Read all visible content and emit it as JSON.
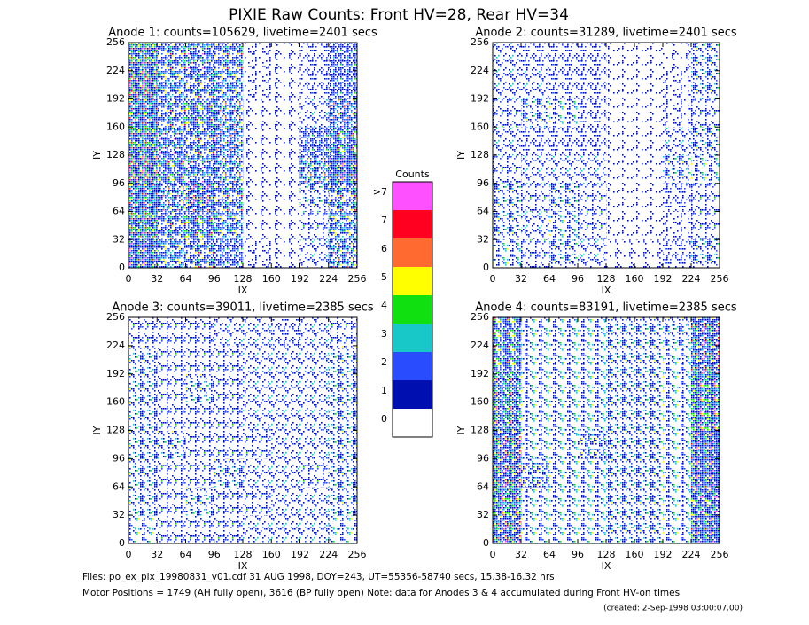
{
  "title": "PIXIE Raw Counts:  Front HV=28, Rear HV=34",
  "colorbar": {
    "title": "Counts",
    "levels": [
      {
        "label": "0",
        "color": "#ffffff"
      },
      {
        "label": "1",
        "color": "#0010b0"
      },
      {
        "label": "2",
        "color": "#2a4cff"
      },
      {
        "label": "3",
        "color": "#18c8c8"
      },
      {
        "label": "4",
        "color": "#10e010"
      },
      {
        "label": "5",
        "color": "#ffff00"
      },
      {
        "label": "6",
        "color": "#ff6a30"
      },
      {
        "label": "7",
        "color": "#ff0020"
      },
      {
        "label": ">7",
        "color": "#ff50ff"
      }
    ]
  },
  "footer": [
    "Files: po_ex_pix_19980831_v01.cdf    31 AUG 1998, DOY=243, UT=55356-58740 secs, 15.38-16.32 hrs",
    "Motor Positions = 1749 (AH fully open), 3616 (BP fully open)    Note: data for Anodes 3 & 4 accumulated during Front HV-on times",
    "(created:  2-Sep-1998 03:00:07.00)"
  ],
  "chart_data": [
    {
      "type": "heatmap",
      "title": "Anode 1: counts=105629, livetime=2401 secs",
      "x_label": "IX",
      "y_label": "IY",
      "xlim": [
        0,
        256
      ],
      "ylim": [
        0,
        256
      ],
      "xticks": [
        0,
        32,
        64,
        96,
        128,
        160,
        192,
        224,
        256
      ],
      "yticks": [
        0,
        32,
        64,
        96,
        128,
        160,
        192,
        224,
        256
      ],
      "z": [
        [
          2.2,
          1.5,
          1.6,
          1.2,
          0.4,
          0.3,
          0.6,
          1.4
        ],
        [
          2.5,
          1.6,
          1.8,
          1.5,
          0.3,
          0.3,
          0.7,
          1.5
        ],
        [
          2.4,
          1.4,
          2.0,
          1.6,
          0.3,
          0.3,
          0.8,
          1.6
        ],
        [
          2.6,
          1.8,
          1.7,
          1.4,
          0.3,
          0.3,
          1.4,
          2.2
        ],
        [
          2.5,
          1.7,
          1.6,
          1.3,
          0.3,
          0.3,
          1.2,
          1.8
        ],
        [
          2.4,
          1.6,
          1.8,
          1.4,
          0.3,
          0.3,
          0.6,
          1.3
        ],
        [
          2.6,
          1.5,
          1.6,
          1.5,
          0.4,
          0.3,
          0.5,
          1.2
        ],
        [
          2.5,
          1.6,
          1.7,
          1.6,
          0.4,
          0.3,
          0.5,
          1.2
        ]
      ]
    },
    {
      "type": "heatmap",
      "title": "Anode 2: counts=31289, livetime=2401 secs",
      "x_label": "IX",
      "y_label": "IY",
      "xlim": [
        0,
        256
      ],
      "ylim": [
        0,
        256
      ],
      "xticks": [
        0,
        32,
        64,
        96,
        128,
        160,
        192,
        224,
        256
      ],
      "yticks": [
        0,
        32,
        64,
        96,
        128,
        160,
        192,
        224,
        256
      ],
      "z": [
        [
          0.9,
          0.7,
          0.8,
          0.6,
          0.3,
          0.3,
          0.5,
          0.8
        ],
        [
          0.8,
          0.6,
          0.9,
          0.7,
          0.2,
          0.2,
          0.4,
          0.7
        ],
        [
          0.8,
          0.7,
          0.8,
          0.7,
          0.2,
          0.2,
          0.5,
          0.7
        ],
        [
          0.7,
          0.6,
          0.6,
          0.6,
          0.2,
          0.2,
          0.8,
          0.9
        ],
        [
          0.6,
          0.5,
          0.5,
          0.5,
          0.2,
          0.2,
          0.6,
          0.8
        ],
        [
          0.7,
          0.8,
          0.9,
          0.5,
          0.2,
          0.2,
          0.4,
          0.7
        ],
        [
          0.6,
          0.6,
          0.5,
          0.5,
          0.2,
          0.2,
          0.4,
          0.8
        ],
        [
          0.6,
          0.5,
          0.5,
          0.5,
          0.2,
          0.2,
          0.3,
          0.8
        ]
      ]
    },
    {
      "type": "heatmap",
      "title": "Anode 3: counts=39011, livetime=2385 secs",
      "x_label": "IX",
      "y_label": "IY",
      "xlim": [
        0,
        256
      ],
      "ylim": [
        0,
        256
      ],
      "xticks": [
        0,
        32,
        64,
        96,
        128,
        160,
        192,
        224,
        256
      ],
      "yticks": [
        0,
        32,
        64,
        96,
        128,
        160,
        192,
        224,
        256
      ],
      "z": [
        [
          0.9,
          0.7,
          0.7,
          0.7,
          0.6,
          0.6,
          0.6,
          0.9
        ],
        [
          0.8,
          0.7,
          0.8,
          0.7,
          0.7,
          0.6,
          0.6,
          0.8
        ],
        [
          0.8,
          0.7,
          0.7,
          0.8,
          0.6,
          0.6,
          0.7,
          0.8
        ],
        [
          0.8,
          0.8,
          0.7,
          0.7,
          0.7,
          0.6,
          0.6,
          0.8
        ],
        [
          0.8,
          0.7,
          0.7,
          0.7,
          0.6,
          0.6,
          0.6,
          0.8
        ],
        [
          0.8,
          0.7,
          0.8,
          0.7,
          0.6,
          0.6,
          0.6,
          0.8
        ],
        [
          0.8,
          0.7,
          0.7,
          0.7,
          0.6,
          0.6,
          0.6,
          0.8
        ],
        [
          0.7,
          0.7,
          0.7,
          0.6,
          0.6,
          0.5,
          0.6,
          0.7
        ]
      ]
    },
    {
      "type": "heatmap",
      "title": "Anode 4: counts=83191, livetime=2385 secs",
      "x_label": "IX",
      "y_label": "IY",
      "xlim": [
        0,
        256
      ],
      "ylim": [
        0,
        256
      ],
      "xticks": [
        0,
        32,
        64,
        96,
        128,
        160,
        192,
        224,
        256
      ],
      "yticks": [
        0,
        32,
        64,
        96,
        128,
        160,
        192,
        224,
        256
      ],
      "z": [
        [
          2.0,
          0.9,
          0.9,
          0.9,
          0.8,
          0.8,
          0.9,
          2.2
        ],
        [
          2.1,
          0.9,
          0.9,
          0.9,
          0.8,
          0.8,
          0.9,
          2.3
        ],
        [
          2.0,
          1.0,
          0.9,
          0.9,
          0.8,
          0.8,
          0.9,
          2.2
        ],
        [
          2.0,
          0.9,
          0.9,
          1.0,
          0.8,
          0.8,
          0.9,
          2.2
        ],
        [
          1.9,
          0.9,
          0.9,
          0.9,
          0.8,
          0.8,
          0.9,
          2.1
        ],
        [
          1.9,
          0.9,
          0.9,
          0.9,
          0.8,
          0.8,
          0.9,
          2.1
        ],
        [
          1.8,
          0.9,
          0.9,
          0.9,
          0.8,
          0.8,
          0.9,
          2.0
        ],
        [
          1.8,
          0.9,
          0.9,
          0.9,
          0.8,
          0.8,
          0.8,
          2.0
        ]
      ]
    }
  ]
}
